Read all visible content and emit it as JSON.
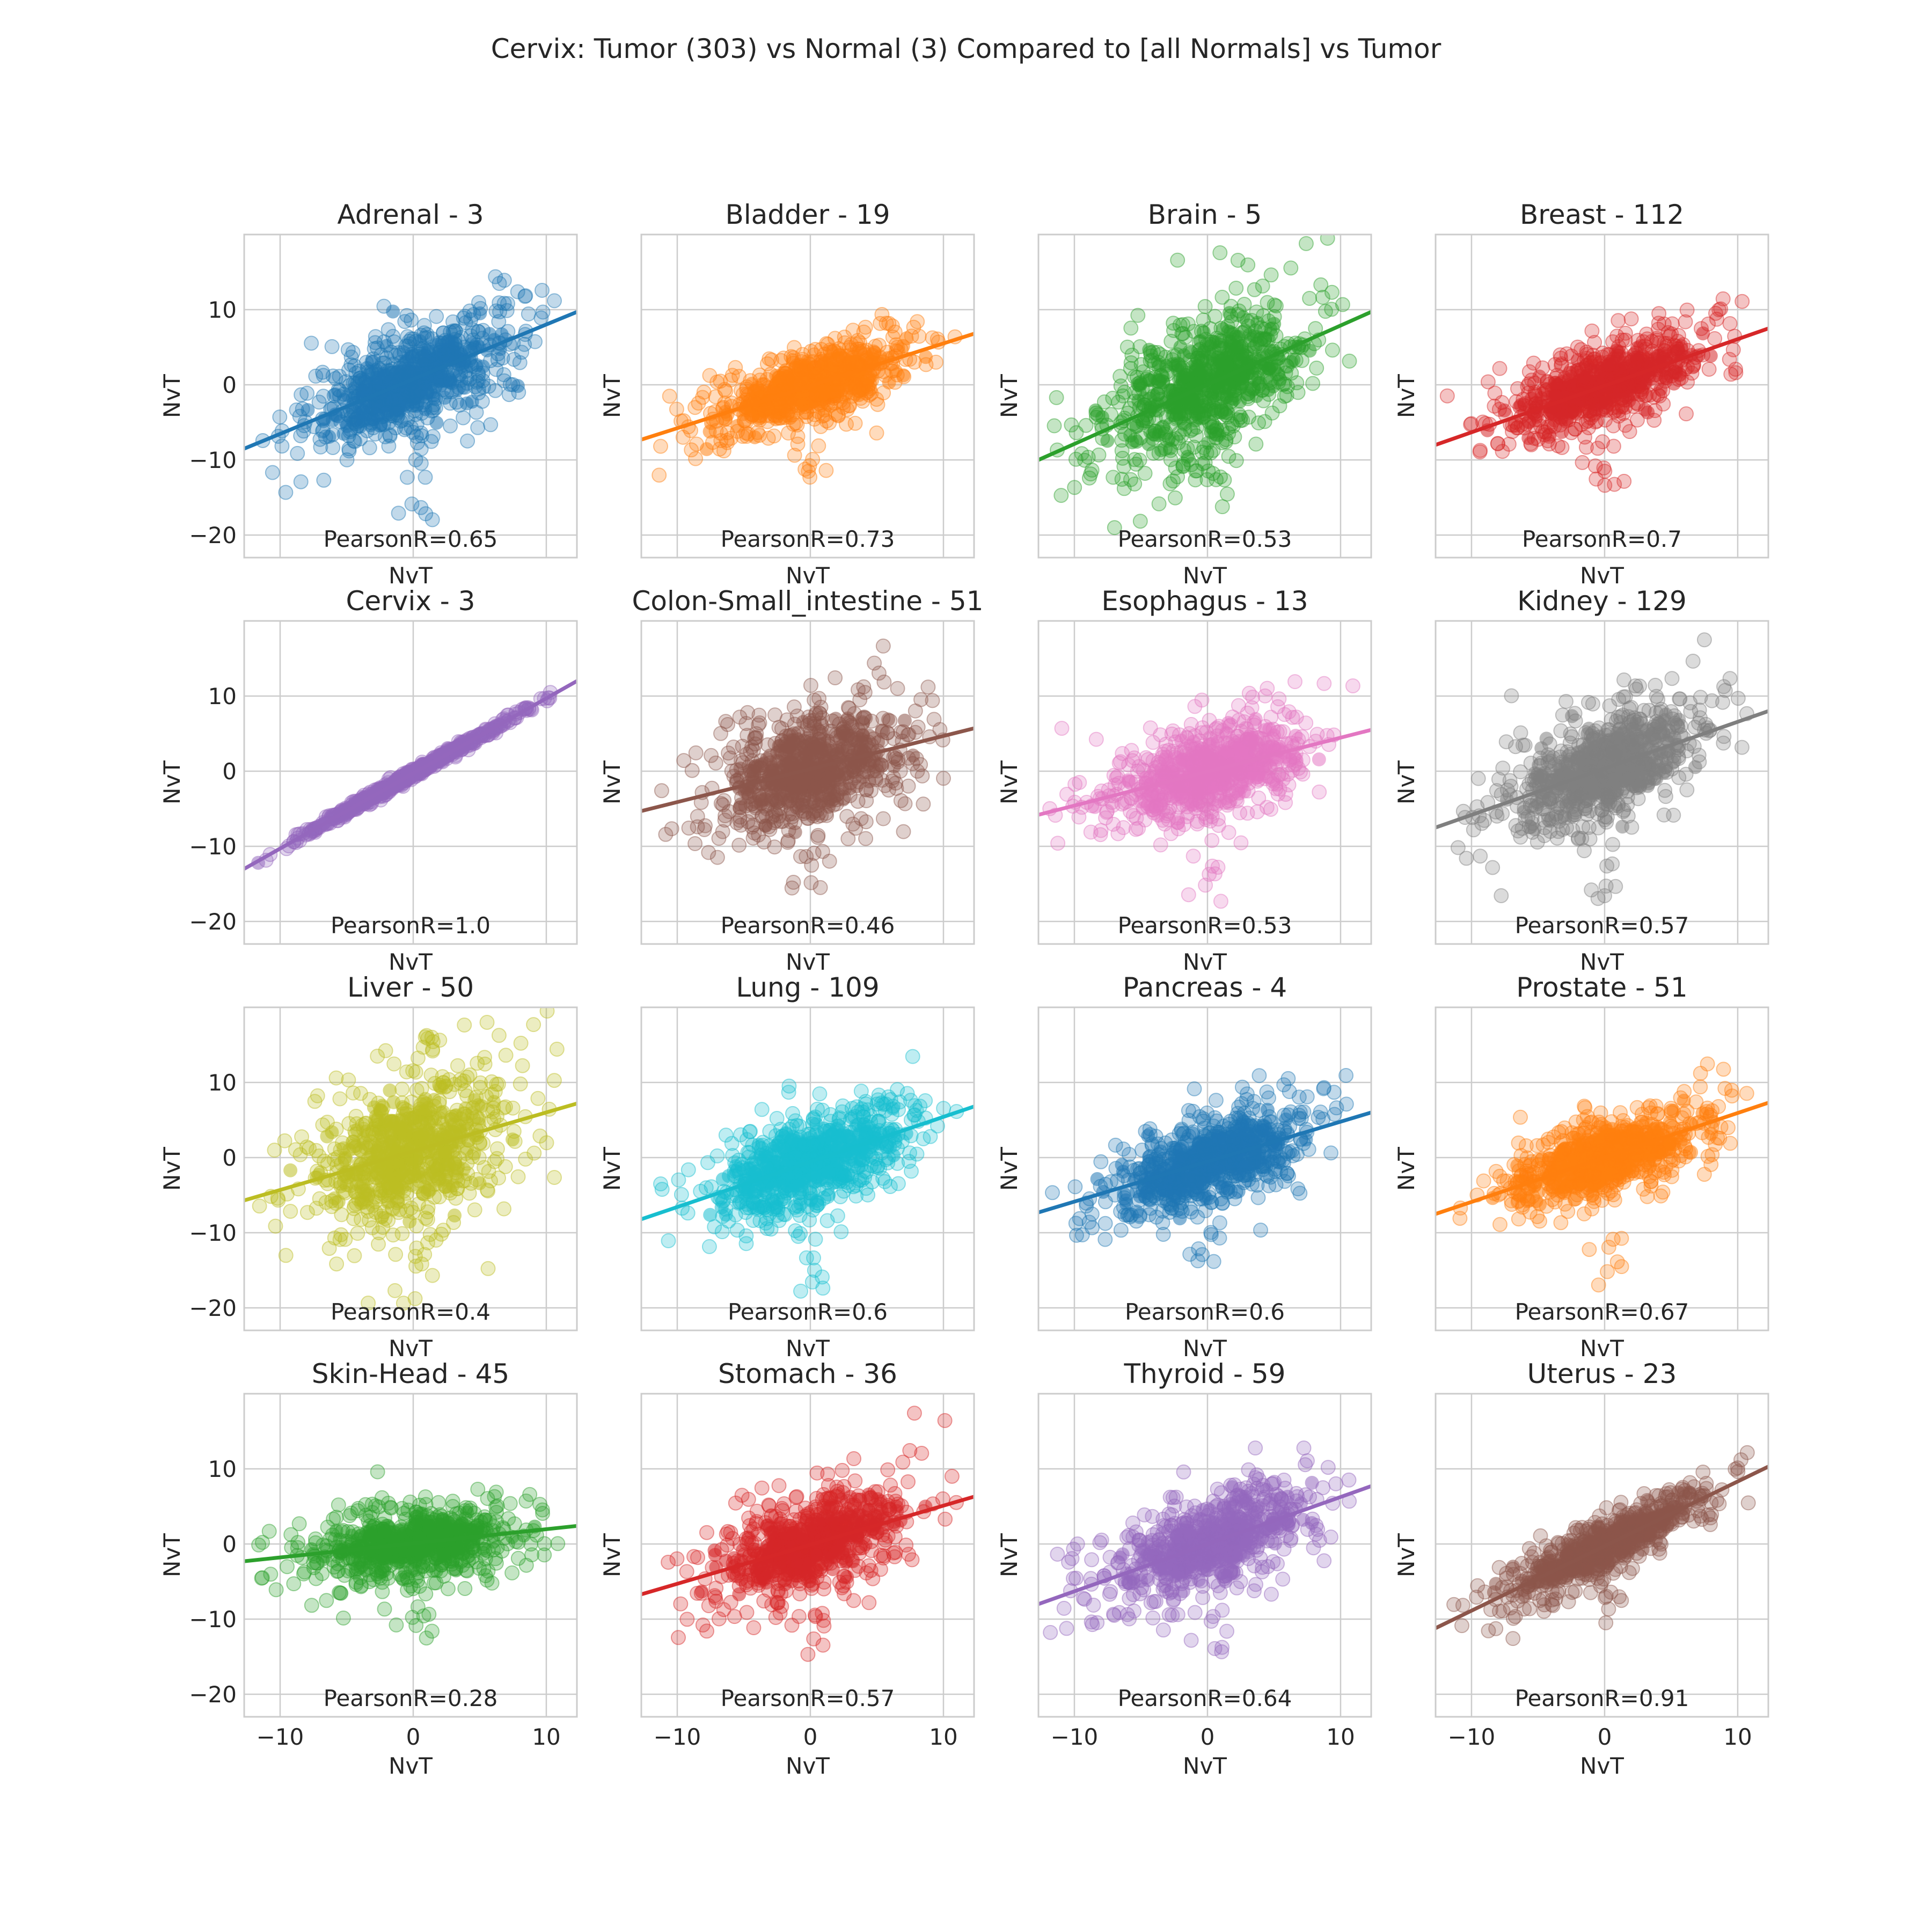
{
  "figure": {
    "suptitle": "Cervix: Tumor (303) vs Normal (3) Compared to [all Normals] vs Tumor",
    "xlabel": "NvT",
    "ylabel": "NvT",
    "xticks": [
      -10,
      0,
      10
    ],
    "yticks": [
      10,
      0,
      -10,
      -20
    ],
    "xlim": [
      -12.7,
      12.3
    ],
    "ylim": [
      -23,
      20
    ]
  },
  "chart_data": {
    "type": "scatter",
    "grid": true,
    "panels": [
      {
        "title": "Adrenal - 3",
        "pearson": "PearsonR=0.65",
        "r": 0.65,
        "color": "#1f77b4",
        "line": {
          "x": [
            -12.7,
            12.3
          ],
          "y": [
            -8.5,
            9.7
          ]
        },
        "spread": {
          "x": 3.8,
          "y": 4.0
        },
        "outlier_low": -18
      },
      {
        "title": "Bladder - 19",
        "pearson": "PearsonR=0.73",
        "r": 0.73,
        "color": "#ff7f0e",
        "line": {
          "x": [
            -12.7,
            12.3
          ],
          "y": [
            -7.3,
            6.8
          ]
        },
        "spread": {
          "x": 3.8,
          "y": 3.0
        },
        "outlier_low": -12.5
      },
      {
        "title": "Brain - 5",
        "pearson": "PearsonR=0.53",
        "r": 0.53,
        "color": "#2ca02c",
        "line": {
          "x": [
            -12.7,
            12.3
          ],
          "y": [
            -10.0,
            9.7
          ]
        },
        "spread": {
          "x": 4.0,
          "y": 5.0
        },
        "outlier_low": -15
      },
      {
        "title": "Breast - 112",
        "pearson": "PearsonR=0.7",
        "r": 0.7,
        "color": "#d62728",
        "line": {
          "x": [
            -12.7,
            12.3
          ],
          "y": [
            -8.0,
            7.5
          ]
        },
        "spread": {
          "x": 4.0,
          "y": 3.5
        },
        "outlier_low": -14
      },
      {
        "title": "Cervix - 3",
        "pearson": "PearsonR=1.0",
        "r": 1.0,
        "color": "#9467bd",
        "line": {
          "x": [
            -12.7,
            12.3
          ],
          "y": [
            -13.0,
            12.0
          ]
        },
        "spread": {
          "x": 4.0,
          "y": 4.0
        },
        "outlier_low": -12
      },
      {
        "title": "Colon-Small_intestine - 51",
        "pearson": "PearsonR=0.46",
        "r": 0.46,
        "color": "#8c564b",
        "line": {
          "x": [
            -12.7,
            12.3
          ],
          "y": [
            -5.3,
            5.7
          ]
        },
        "spread": {
          "x": 3.8,
          "y": 4.2
        },
        "outlier_low": -16
      },
      {
        "title": "Esophagus - 13",
        "pearson": "PearsonR=0.53",
        "r": 0.53,
        "color": "#e377c2",
        "line": {
          "x": [
            -12.7,
            12.3
          ],
          "y": [
            -5.8,
            5.5
          ]
        },
        "spread": {
          "x": 4.0,
          "y": 3.3
        },
        "outlier_low": -18
      },
      {
        "title": "Kidney - 129",
        "pearson": "PearsonR=0.57",
        "r": 0.57,
        "color": "#7f7f7f",
        "line": {
          "x": [
            -12.7,
            12.3
          ],
          "y": [
            -7.5,
            8.0
          ]
        },
        "spread": {
          "x": 4.0,
          "y": 4.0
        },
        "outlier_low": -17
      },
      {
        "title": "Liver - 50",
        "pearson": "PearsonR=0.4",
        "r": 0.4,
        "color": "#bcbd22",
        "line": {
          "x": [
            -12.7,
            12.3
          ],
          "y": [
            -5.7,
            7.2
          ]
        },
        "spread": {
          "x": 4.0,
          "y": 5.0
        },
        "outlier_low": -20
      },
      {
        "title": "Lung - 109",
        "pearson": "PearsonR=0.6",
        "r": 0.6,
        "color": "#17becf",
        "line": {
          "x": [
            -12.7,
            12.3
          ],
          "y": [
            -8.2,
            6.8
          ]
        },
        "spread": {
          "x": 3.8,
          "y": 3.5
        },
        "outlier_low": -19
      },
      {
        "title": "Pancreas - 4",
        "pearson": "PearsonR=0.6",
        "r": 0.6,
        "color": "#1f77b4",
        "line": {
          "x": [
            -12.7,
            12.3
          ],
          "y": [
            -7.3,
            6.0
          ]
        },
        "spread": {
          "x": 3.8,
          "y": 3.5
        },
        "outlier_low": -15
      },
      {
        "title": "Prostate - 51",
        "pearson": "PearsonR=0.67",
        "r": 0.67,
        "color": "#ff7f0e",
        "line": {
          "x": [
            -12.7,
            12.3
          ],
          "y": [
            -7.5,
            7.3
          ]
        },
        "spread": {
          "x": 3.8,
          "y": 3.3
        },
        "outlier_low": -18
      },
      {
        "title": "Skin-Head - 45",
        "pearson": "PearsonR=0.28",
        "r": 0.28,
        "color": "#2ca02c",
        "line": {
          "x": [
            -12.7,
            12.3
          ],
          "y": [
            -2.3,
            2.4
          ]
        },
        "spread": {
          "x": 4.0,
          "y": 2.3
        },
        "outlier_low": -13
      },
      {
        "title": "Stomach - 36",
        "pearson": "PearsonR=0.57",
        "r": 0.57,
        "color": "#d62728",
        "line": {
          "x": [
            -12.7,
            12.3
          ],
          "y": [
            -6.7,
            6.3
          ]
        },
        "spread": {
          "x": 3.8,
          "y": 3.6
        },
        "outlier_low": -15.5
      },
      {
        "title": "Thyroid - 59",
        "pearson": "PearsonR=0.64",
        "r": 0.64,
        "color": "#9467bd",
        "line": {
          "x": [
            -12.7,
            12.3
          ],
          "y": [
            -8.0,
            7.7
          ]
        },
        "spread": {
          "x": 3.8,
          "y": 3.6
        },
        "outlier_low": -16
      },
      {
        "title": "Uterus - 23",
        "pearson": "PearsonR=0.91",
        "r": 0.91,
        "color": "#8c564b",
        "line": {
          "x": [
            -12.7,
            12.3
          ],
          "y": [
            -11.2,
            10.3
          ]
        },
        "spread": {
          "x": 3.8,
          "y": 3.8
        },
        "outlier_low": -11
      }
    ]
  }
}
